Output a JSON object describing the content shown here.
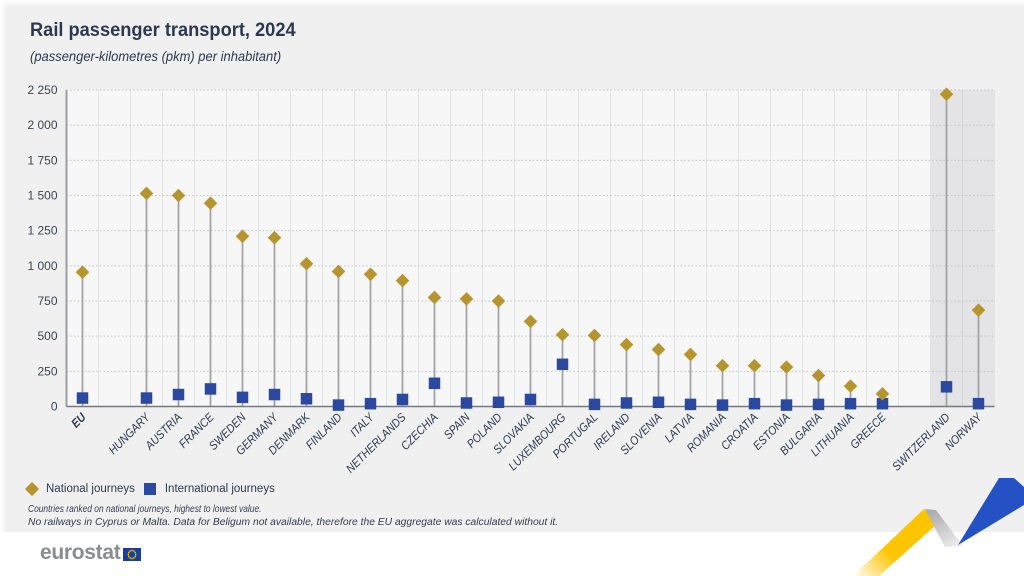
{
  "title": "Rail passenger transport, 2024",
  "subtitle": "(passenger-kilometres (pkm) per inhabitant)",
  "legend": {
    "national_label": "National journeys",
    "international_label": "International journeys"
  },
  "footnotes": [
    "Countries ranked on national journeys, highest to lowest value.",
    "No railways in Cyprus or Malta. Data for Beligum not available, therefore the EU aggregate was calculated without it."
  ],
  "logo_text": "eurostat",
  "colors": {
    "national": "#b6952e",
    "international": "#2b49a1",
    "page_bg": "#f0f0f1",
    "plot_bg": "#f7f7f8",
    "shaded_bg": "#e4e4e6",
    "text": "#2c3950",
    "stem": "#a3a3a5",
    "gridline": "#bfc1c4",
    "column_line": "#e2e3e5",
    "column_line_shaded": "#d4d5d7",
    "axis_line": "#9b9ea3",
    "baseline": "#75787c"
  },
  "chart_data": {
    "type": "scatter",
    "title": "Rail passenger transport, 2024",
    "ylabel": "(passenger-kilometres (pkm) per inhabitant)",
    "ylim": [
      0,
      2250
    ],
    "ytick_step": 250,
    "ytick_labels": [
      "0",
      "250",
      "500",
      "750",
      "1 000",
      "1 250",
      "1 500",
      "1 750",
      "2 000",
      "2 250"
    ],
    "grid": "horizontal-dotted",
    "legend_position": "bottom-left",
    "series_names": [
      "National journeys",
      "International journeys"
    ],
    "rows": [
      {
        "label": "EU",
        "national": 955,
        "international": 60,
        "bold": true
      },
      {
        "label": "HUNGARY",
        "national": 1515,
        "international": 60,
        "gap_before": true
      },
      {
        "label": "AUSTRIA",
        "national": 1500,
        "international": 85
      },
      {
        "label": "FRANCE",
        "national": 1445,
        "international": 125
      },
      {
        "label": "SWEDEN",
        "national": 1210,
        "international": 65
      },
      {
        "label": "GERMANY",
        "national": 1200,
        "international": 85
      },
      {
        "label": "DENMARK",
        "national": 1015,
        "international": 55
      },
      {
        "label": "FINLAND",
        "national": 960,
        "international": 10
      },
      {
        "label": "ITALY",
        "national": 940,
        "international": 20
      },
      {
        "label": "NETHERLANDS",
        "national": 895,
        "international": 50
      },
      {
        "label": "CZECHIA",
        "national": 775,
        "international": 165
      },
      {
        "label": "SPAIN",
        "national": 765,
        "international": 25
      },
      {
        "label": "POLAND",
        "national": 750,
        "international": 30
      },
      {
        "label": "SLOVAKIA",
        "national": 605,
        "international": 50
      },
      {
        "label": "LUXEMBOURG",
        "national": 510,
        "international": 300
      },
      {
        "label": "PORTUGAL",
        "national": 505,
        "international": 15
      },
      {
        "label": "IRELAND",
        "national": 440,
        "international": 25
      },
      {
        "label": "SLOVENIA",
        "national": 405,
        "international": 30
      },
      {
        "label": "LATVIA",
        "national": 370,
        "international": 15
      },
      {
        "label": "ROMANIA",
        "national": 290,
        "international": 10
      },
      {
        "label": "CROATIA",
        "national": 290,
        "international": 20
      },
      {
        "label": "ESTONIA",
        "national": 280,
        "international": 10
      },
      {
        "label": "BULGARIA",
        "national": 220,
        "international": 15
      },
      {
        "label": "LITHUANIA",
        "national": 145,
        "international": 20
      },
      {
        "label": "GREECE",
        "national": 90,
        "international": 20
      },
      {
        "label": "SWITZERLAND",
        "national": 2220,
        "international": 140,
        "gap_before": true,
        "shaded": true
      },
      {
        "label": "NORWAY",
        "national": 685,
        "international": 20,
        "shaded": true
      }
    ]
  }
}
